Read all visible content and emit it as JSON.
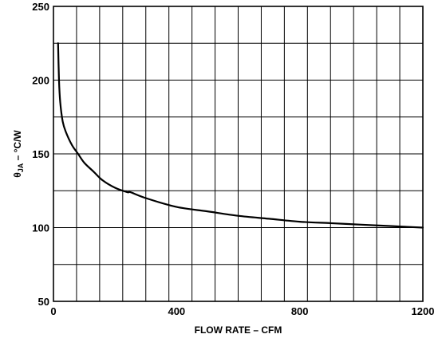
{
  "chart_data": {
    "type": "line",
    "title": "",
    "xlabel": "FLOW RATE – CFM",
    "ylabel": {
      "prefix": "θ",
      "subscript": "JA",
      "suffix": " – °C/W"
    },
    "xlim": [
      0,
      1200
    ],
    "ylim": [
      50,
      250
    ],
    "grid": true,
    "grid_x_step": 75,
    "grid_y_step": 25,
    "x_ticks": [
      {
        "value": 0,
        "label": "0"
      },
      {
        "value": 400,
        "label": "400"
      },
      {
        "value": 800,
        "label": "800"
      },
      {
        "value": 1200,
        "label": "1200"
      }
    ],
    "y_ticks": [
      {
        "value": 50,
        "label": "50"
      },
      {
        "value": 100,
        "label": "100"
      },
      {
        "value": 150,
        "label": "150"
      },
      {
        "value": 200,
        "label": "200"
      },
      {
        "value": 250,
        "label": "250"
      }
    ],
    "series": [
      {
        "color": "#000000",
        "x": [
          15,
          18,
          22,
          30,
          40,
          60,
          80,
          100,
          130,
          160,
          200,
          240,
          250,
          300,
          400,
          500,
          600,
          700,
          800,
          900,
          1000,
          1100,
          1200
        ],
        "y": [
          225,
          200,
          185,
          172,
          165,
          156,
          150,
          144,
          138,
          132,
          127,
          124,
          124,
          120,
          114,
          111,
          108,
          106,
          104,
          103,
          102,
          101,
          100
        ]
      }
    ]
  }
}
